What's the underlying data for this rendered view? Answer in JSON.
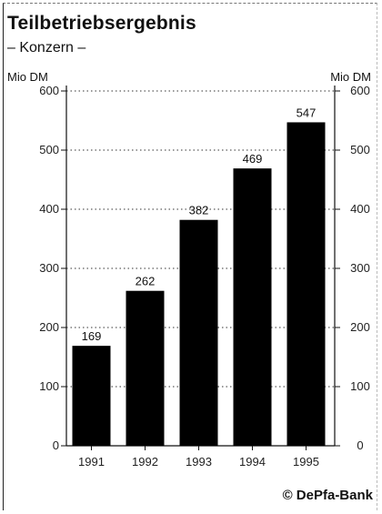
{
  "chart_data": {
    "type": "bar",
    "title": "Teilbetriebsergebnis",
    "subtitle": "– Konzern –",
    "ylabel_left": "Mio DM",
    "ylabel_right": "Mio DM",
    "categories": [
      "1991",
      "1992",
      "1993",
      "1994",
      "1995"
    ],
    "values": [
      169,
      262,
      382,
      469,
      547
    ],
    "value_labels": [
      "169",
      "262",
      "382",
      "469",
      "547"
    ],
    "ylim": [
      0,
      600
    ],
    "yticks": [
      0,
      100,
      200,
      300,
      400,
      500,
      600
    ],
    "ytick_labels": [
      "0",
      "100",
      "200",
      "300",
      "400",
      "500",
      "600"
    ],
    "grid": "dotted horizontal",
    "bar_color": "#000000"
  },
  "footer": {
    "copyright": "© DePfa-Bank"
  }
}
